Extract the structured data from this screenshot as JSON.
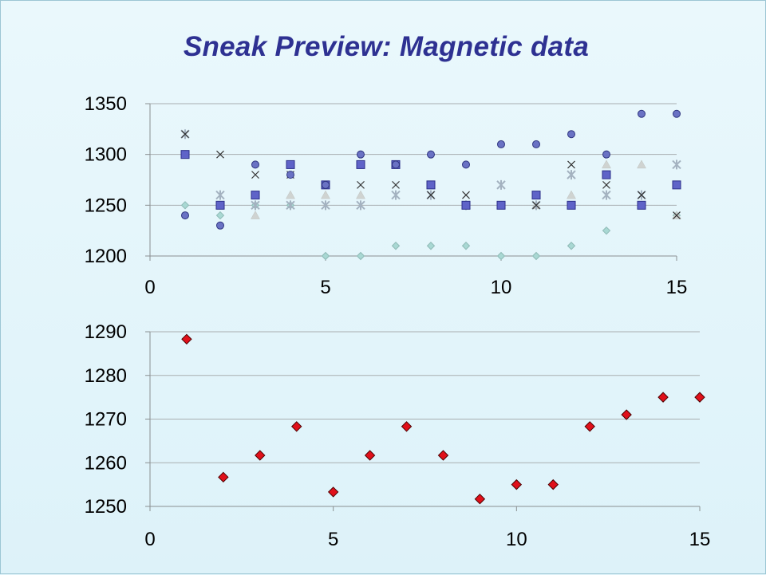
{
  "slide": {
    "title": "Sneak Preview: Magnetic data"
  },
  "chart_data": [
    {
      "type": "scatter",
      "title": "",
      "xlabel": "",
      "ylabel": "",
      "xlim": [
        0,
        15
      ],
      "ylim": [
        1200,
        1350
      ],
      "x_ticks": [
        0,
        5,
        10,
        15
      ],
      "y_ticks": [
        1200,
        1250,
        1300,
        1350
      ],
      "grid": "horizontal",
      "legend": "none",
      "series": [
        {
          "marker": "circle",
          "color": "#6a72c4",
          "x": [
            1,
            2,
            3,
            4,
            5,
            6,
            7,
            8,
            9,
            10,
            11,
            12,
            13,
            14,
            15
          ],
          "values": [
            1240,
            1230,
            1290,
            1280,
            1270,
            1300,
            1290,
            1300,
            1290,
            1310,
            1310,
            1320,
            1300,
            1340,
            1340
          ]
        },
        {
          "marker": "square",
          "color": "#5f63c8",
          "x": [
            1,
            2,
            3,
            4,
            5,
            6,
            7,
            8,
            9,
            10,
            11,
            12,
            13,
            14,
            15
          ],
          "values": [
            1300,
            1250,
            1260,
            1290,
            1270,
            1290,
            1290,
            1270,
            1250,
            1250,
            1260,
            1250,
            1280,
            1250,
            1270
          ]
        },
        {
          "marker": "diamond",
          "color": "#a8d8d3",
          "x": [
            1,
            2,
            3,
            4,
            5,
            6,
            7,
            8,
            9,
            10,
            11,
            12,
            13,
            14,
            15
          ],
          "values": [
            1250,
            1240,
            1250,
            1250,
            1200,
            1200,
            1210,
            1210,
            1210,
            1200,
            1200,
            1210,
            1225,
            1250,
            1240
          ]
        },
        {
          "marker": "triangle",
          "color": "#cfd3d1",
          "x": [
            1,
            2,
            3,
            4,
            5,
            6,
            7,
            8,
            9,
            10,
            11,
            12,
            13,
            14,
            15
          ],
          "values": [
            1300,
            1250,
            1240,
            1260,
            1260,
            1260,
            1290,
            1270,
            1250,
            1250,
            1250,
            1260,
            1290,
            1290,
            1240
          ]
        },
        {
          "marker": "x",
          "color": "#333333",
          "x": [
            1,
            2,
            3,
            4,
            5,
            6,
            7,
            8,
            9,
            10,
            11,
            12,
            13,
            14,
            15
          ],
          "values": [
            1320,
            1300,
            1280,
            1280,
            1270,
            1270,
            1270,
            1260,
            1260,
            1250,
            1250,
            1290,
            1270,
            1260,
            1240
          ]
        },
        {
          "marker": "star",
          "color": "#a4b2c0",
          "x": [
            1,
            2,
            3,
            4,
            5,
            6,
            7,
            8,
            9,
            10,
            11,
            12,
            13,
            14,
            15
          ],
          "values": [
            1320,
            1260,
            1250,
            1250,
            1250,
            1250,
            1260,
            1260,
            1250,
            1270,
            1250,
            1280,
            1260,
            1260,
            1290
          ]
        }
      ]
    },
    {
      "type": "scatter",
      "title": "",
      "xlabel": "",
      "ylabel": "",
      "xlim": [
        0,
        15
      ],
      "ylim": [
        1250,
        1290
      ],
      "x_ticks": [
        0,
        5,
        10,
        15
      ],
      "y_ticks": [
        1250,
        1260,
        1270,
        1280,
        1290
      ],
      "grid": "horizontal",
      "legend": "none",
      "series": [
        {
          "marker": "diamond",
          "color": "#e0101a",
          "x": [
            1,
            2,
            3,
            4,
            5,
            6,
            7,
            8,
            9,
            10,
            11,
            12,
            13,
            14,
            15
          ],
          "values": [
            1288.3,
            1256.7,
            1261.7,
            1268.3,
            1253.3,
            1261.7,
            1268.3,
            1261.7,
            1251.7,
            1255,
            1255,
            1268.3,
            1271,
            1275,
            1275
          ]
        }
      ]
    }
  ]
}
